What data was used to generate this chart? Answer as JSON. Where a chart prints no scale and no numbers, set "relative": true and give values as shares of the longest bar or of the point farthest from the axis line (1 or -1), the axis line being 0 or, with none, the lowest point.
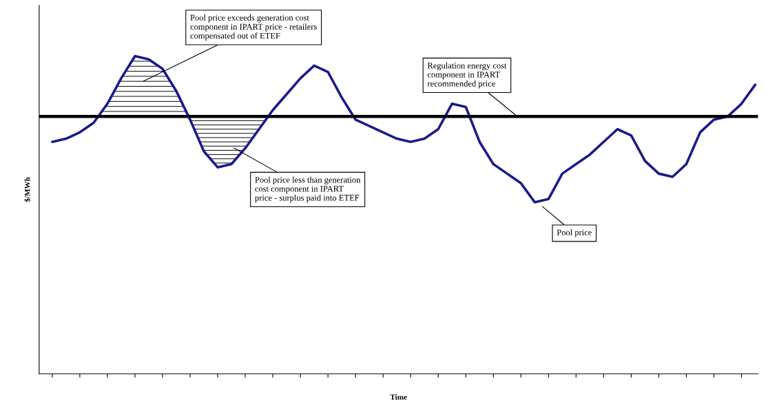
{
  "chart_data": {
    "type": "line",
    "relative": true,
    "xlabel": "Time",
    "ylabel": "$/MWh",
    "categories": [
      null,
      null,
      null,
      null,
      null,
      null,
      null,
      null,
      null,
      null,
      null,
      null,
      null,
      null,
      null,
      null,
      null,
      null,
      null,
      null,
      null,
      null,
      null,
      null,
      null,
      null,
      null,
      null,
      null,
      null,
      null,
      null,
      null,
      null,
      null,
      null,
      null,
      null,
      null,
      null,
      null,
      null,
      null,
      null,
      null,
      null,
      null,
      null,
      null,
      null,
      null,
      null
    ],
    "series": [
      {
        "color": "#1a1a8c",
        "values": [
          0.73,
          0.74,
          0.76,
          0.79,
          0.85,
          0.93,
          1.0,
          0.99,
          0.96,
          0.89,
          0.8,
          0.7,
          0.65,
          0.66,
          0.71,
          0.77,
          0.83,
          0.88,
          0.93,
          0.97,
          0.95,
          0.87,
          0.8,
          0.78,
          0.76,
          0.74,
          0.73,
          0.74,
          0.77,
          0.85,
          0.84,
          0.73,
          0.66,
          0.63,
          0.6,
          0.54,
          0.55,
          0.63,
          0.66,
          0.69,
          0.73,
          0.77,
          0.75,
          0.67,
          0.63,
          0.62,
          0.66,
          0.76,
          0.8,
          0.81,
          0.85,
          0.91
        ]
      }
    ],
    "ref_lines": [
      {
        "axis": "y",
        "value": 0.81,
        "color": "#000000",
        "line_style": "solid"
      }
    ],
    "annotations": [
      "Pool price exceeds generation cost\ncomponent in IPART price - retailers\ncompensated out of ETEF",
      "Regulation energy cost\ncomponent in IPART\nrecommended price",
      "Pool price less than generation\ncost component in IPART\nprice - surplus paid into ETEF",
      "Pool price"
    ],
    "grid": false,
    "legend": false,
    "marker": "none",
    "line_style": "solid"
  }
}
